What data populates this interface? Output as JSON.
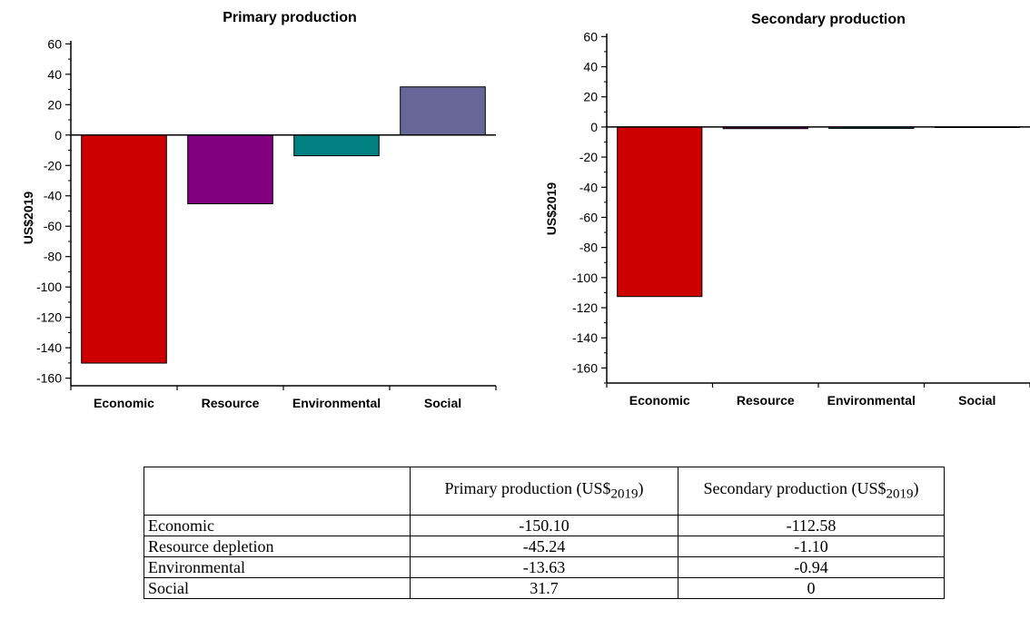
{
  "chart_data": [
    {
      "type": "bar",
      "title": "Primary production",
      "ylabel": "US$2019",
      "xlabel": "",
      "categories": [
        "Economic",
        "Resource",
        "Environmental",
        "Social"
      ],
      "values": [
        -150.1,
        -45.24,
        -13.63,
        31.7
      ],
      "colors": [
        "#cc0000",
        "#800080",
        "#008080",
        "#666699"
      ],
      "ylim": [
        -165,
        62
      ],
      "yticks": [
        "60",
        "40",
        "20",
        "0",
        "-20",
        "-40",
        "-60",
        "-80",
        "-100",
        "-120",
        "-140",
        "-160"
      ],
      "grid": false
    },
    {
      "type": "bar",
      "title": "Secondary production",
      "ylabel": "US$2019",
      "xlabel": "",
      "categories": [
        "Economic",
        "Resource",
        "Environmental",
        "Social"
      ],
      "values": [
        -112.58,
        -1.1,
        -0.94,
        0
      ],
      "colors": [
        "#cc0000",
        "#800080",
        "#008080",
        "#666699"
      ],
      "ylim": [
        -170,
        62
      ],
      "yticks": [
        "60",
        "40",
        "20",
        "0",
        "-20",
        "-40",
        "-60",
        "-80",
        "-100",
        "-120",
        "-140",
        "-160"
      ],
      "grid": false
    }
  ],
  "table": {
    "header": [
      "",
      "Primary production (US$",
      "Secondary production (US$"
    ],
    "header_sub": "2019",
    "header_close": ")",
    "rows": [
      [
        "Economic",
        "-150.10",
        "-112.58"
      ],
      [
        "Resource depletion",
        "-45.24",
        "-1.10"
      ],
      [
        "Environmental",
        "-13.63",
        "-0.94"
      ],
      [
        "Social",
        "31.7",
        "0"
      ]
    ]
  }
}
